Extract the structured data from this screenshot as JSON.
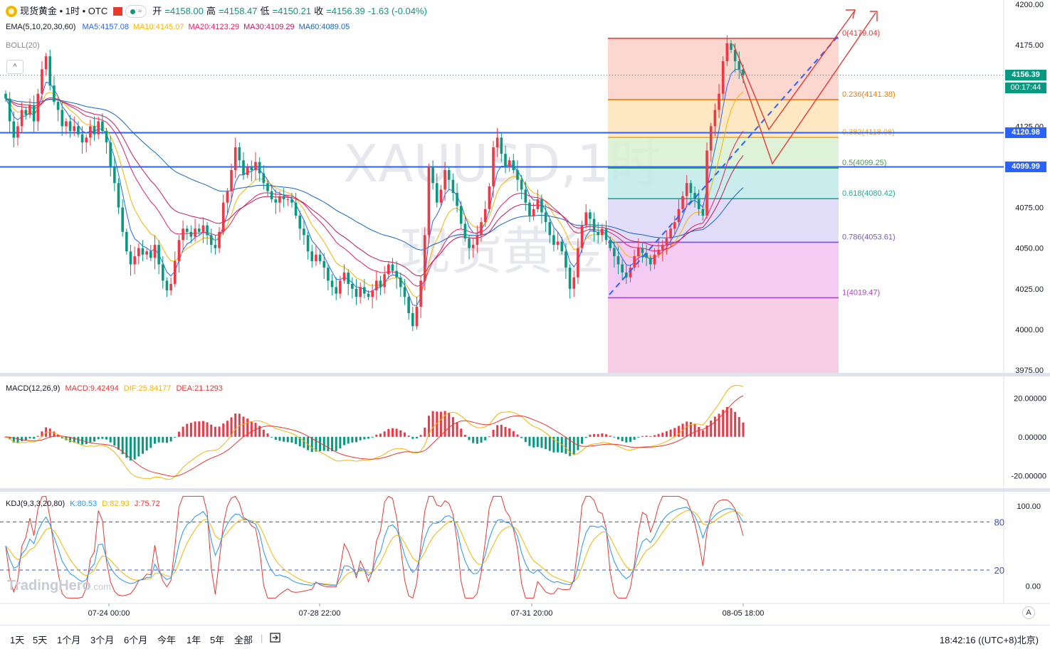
{
  "header": {
    "symbol": "现货黄金 • 1时 • OTC",
    "open_label": "开",
    "open": "=4158.00",
    "high_label": "高",
    "high": "=4158.47",
    "low_label": "低",
    "low": "=4150.21",
    "close_label": "收",
    "close": "=4156.39",
    "change": "-1.63 (-0.04%)",
    "pill_text": "≈"
  },
  "indicators": {
    "ema": {
      "label": "EMA(5,10,20,30,60)",
      "items": [
        {
          "text": "MA5:4157.08",
          "color": "#2962ff"
        },
        {
          "text": "MA10:4145.07",
          "color": "#f7b500"
        },
        {
          "text": "MA20:4123.29",
          "color": "#e91e63"
        },
        {
          "text": "MA30:4109.29",
          "color": "#c2185b"
        },
        {
          "text": "MA60:4089.05",
          "color": "#1565c0"
        }
      ]
    },
    "boll": "BOLL(20)",
    "macd": {
      "label": "MACD(12,26,9)",
      "macd": "MACD:9.42494",
      "dif": "DIF:25.84177",
      "dea": "DEA:21.1293"
    },
    "kdj": {
      "label": "KDJ(9,3,3,20,80)",
      "k": "K:80.53",
      "d": "D:82.93",
      "j": "J:75.72"
    }
  },
  "colors": {
    "up": "#f23645",
    "down": "#089981",
    "hline": "#2962ff",
    "macd_dif": "#f7b500",
    "macd_dea": "#e53935",
    "k": "#2196f3",
    "d": "#f7b500",
    "j": "#e53935"
  },
  "watermark": {
    "main": "XAUUSD,1时",
    "sub": "现货黄金"
  },
  "price_axis": [
    "4200.00",
    "4175.00",
    "4150.00",
    "4125.00",
    "4100.00",
    "4075.00",
    "4050.00",
    "4025.00",
    "4000.00",
    "3975.00"
  ],
  "price_tags": {
    "last": "4156.39",
    "countdown": "00:17:44",
    "line1": "4120.98",
    "line2": "4099.99"
  },
  "macd_axis": [
    "20.00000",
    "0.00000",
    "-20.00000"
  ],
  "kdj_axis": [
    "100.00",
    "0.00"
  ],
  "kdj_levels": [
    "80",
    "20"
  ],
  "time_axis": [
    "07-24 00:00",
    "07-28 22:00",
    "07-31 20:00",
    "08-05 18:00"
  ],
  "fib": [
    {
      "label": "0(4179.04)",
      "price": 4179.04,
      "color": "#e53935"
    },
    {
      "label": "0.236(4141.38)",
      "price": 4141.38,
      "color": "#f57c00"
    },
    {
      "label": "0.382(4118.08)",
      "price": 4118.08,
      "color": "#f9a825"
    },
    {
      "label": "0.5(4099.25)",
      "price": 4099.25,
      "color": "#43a047"
    },
    {
      "label": "0.618(4080.42)",
      "price": 4080.42,
      "color": "#26a69a"
    },
    {
      "label": "0.786(4053.61)",
      "price": 4053.61,
      "color": "#7e57c2"
    },
    {
      "label": "1(4019.47)",
      "price": 4019.47,
      "color": "#ab47bc"
    }
  ],
  "timeframes": [
    "1天",
    "5天",
    "1个月",
    "3个月",
    "6个月",
    "今年",
    "1年",
    "5年",
    "全部"
  ],
  "clock": "18:42:16 ((UTC+8)北京)",
  "logo": {
    "name": "TradingHero",
    "suffix": ".com"
  },
  "axis_button": "A",
  "collapse_icon": "^",
  "chart_data": {
    "type": "candlestick",
    "ylim": [
      3975,
      4200
    ],
    "horizontal_lines": [
      4120.98,
      4099.99
    ],
    "last_price": 4156.39,
    "closes": [
      4142,
      4128,
      4118,
      4125,
      4135,
      4132,
      4138,
      4128,
      4145,
      4160,
      4168,
      4150,
      4140,
      4135,
      4125,
      4128,
      4122,
      4125,
      4120,
      4115,
      4118,
      4125,
      4120,
      4128,
      4122,
      4115,
      4100,
      4090,
      4075,
      4060,
      4048,
      4040,
      4045,
      4050,
      4046,
      4048,
      4044,
      4052,
      4040,
      4030,
      4024,
      4028,
      4042,
      4055,
      4062,
      4060,
      4057,
      4062,
      4060,
      4064,
      4058,
      4052,
      4050,
      4060,
      4078,
      4085,
      4098,
      4112,
      4104,
      4095,
      4100,
      4098,
      4103,
      4096,
      4090,
      4085,
      4080,
      4078,
      4082,
      4080,
      4080,
      4078,
      4070,
      4062,
      4058,
      4048,
      4042,
      4046,
      4042,
      4038,
      4030,
      4026,
      4022,
      4030,
      4035,
      4028,
      4025,
      4020,
      4026,
      4022,
      4020,
      4024,
      4030,
      4026,
      4034,
      4040,
      4036,
      4032,
      4026,
      4020,
      4010,
      4002,
      4014,
      4030,
      4058,
      4100,
      4090,
      4078,
      4086,
      4098,
      4092,
      4084,
      4076,
      4065,
      4056,
      4050,
      4052,
      4058,
      4066,
      4074,
      4088,
      4112,
      4118,
      4108,
      4100,
      4104,
      4098,
      4092,
      4086,
      4078,
      4070,
      4074,
      4080,
      4072,
      4066,
      4058,
      4052,
      4054,
      4048,
      4038,
      4025,
      4032,
      4050,
      4064,
      4072,
      4068,
      4060,
      4058,
      4062,
      4055,
      4050,
      4045,
      4040,
      4035,
      4032,
      4038,
      4045,
      4050,
      4047,
      4044,
      4040,
      4046,
      4049,
      4052,
      4056,
      4062,
      4066,
      4074,
      4082,
      4090,
      4084,
      4080,
      4074,
      4070,
      4110,
      4125,
      4135,
      4145,
      4165,
      4176,
      4172,
      4165,
      4160,
      4156.39
    ],
    "macd": {
      "dif_end": 25.84177,
      "dea_end": 21.1293,
      "hist_end": 9.42494,
      "ylim": [
        -25,
        30
      ]
    },
    "kdj": {
      "k_end": 80.53,
      "d_end": 82.93,
      "j_end": 75.72,
      "levels": [
        80,
        20
      ],
      "ylim": [
        -20,
        115
      ]
    }
  }
}
